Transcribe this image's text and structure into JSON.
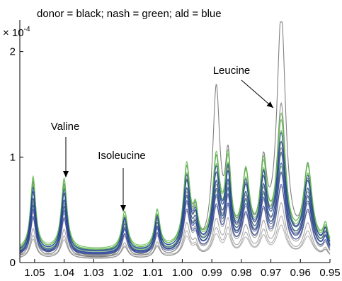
{
  "chart_data": {
    "type": "line",
    "title": "donor = black; nash = green; ald = blue",
    "y_multiplier": "× 10",
    "y_multiplier_exp": "-4",
    "xlabel": "",
    "ylabel": "",
    "xlim": [
      1.055,
      0.95
    ],
    "x_reversed": true,
    "ylim": [
      0,
      2.3
    ],
    "grid": false,
    "x_ticks": [
      "1.05",
      "1.04",
      "1.03",
      "1.02",
      "1.01",
      "1.00",
      "0.99",
      "0.98",
      "0.97",
      "0.96",
      "0.95"
    ],
    "x_tick_values": [
      1.05,
      1.04,
      1.03,
      1.02,
      1.01,
      1.0,
      0.99,
      0.98,
      0.97,
      0.96,
      0.95
    ],
    "y_ticks": [
      "0",
      "1",
      "2"
    ],
    "y_tick_values": [
      0,
      1,
      2
    ],
    "colors": {
      "donor": "#7a7a7a",
      "nash": "#5fb84a",
      "ald": "#2a3fa0"
    },
    "annotations": [
      {
        "text": "Valine",
        "x": 1.04,
        "y": 1.0
      },
      {
        "text": "Isoleucine",
        "x": 1.02,
        "y": 0.55
      },
      {
        "text": "Leucine",
        "x": 0.967,
        "y": 1.85
      }
    ],
    "peaks": [
      {
        "x": 1.0505,
        "w": 0.0011,
        "rel": 0.72
      },
      {
        "x": 1.04,
        "w": 0.0012,
        "rel": 0.7
      },
      {
        "x": 1.0195,
        "w": 0.0012,
        "rel": 0.38
      },
      {
        "x": 1.0085,
        "w": 0.0011,
        "rel": 0.38
      },
      {
        "x": 0.9985,
        "w": 0.0014,
        "rel": 0.8
      },
      {
        "x": 0.9955,
        "w": 0.001,
        "rel": 0.3
      },
      {
        "x": 0.9885,
        "w": 0.0015,
        "rel": 0.85
      },
      {
        "x": 0.9845,
        "w": 0.0012,
        "rel": 0.8
      },
      {
        "x": 0.9785,
        "w": 0.0016,
        "rel": 0.7
      },
      {
        "x": 0.9725,
        "w": 0.0014,
        "rel": 0.75
      },
      {
        "x": 0.9665,
        "w": 0.0018,
        "rel": 1.25
      },
      {
        "x": 0.9575,
        "w": 0.0018,
        "rel": 0.8
      },
      {
        "x": 0.9515,
        "w": 0.001,
        "rel": 0.2
      }
    ],
    "series": [
      {
        "group": "donor",
        "scale": 1.0,
        "baseline": 0.03,
        "tweak": {
          "10": 1.8,
          "6": 1.8,
          "4": 1.0
        }
      },
      {
        "group": "donor",
        "scale": 0.85,
        "baseline": 0.05,
        "tweak": {
          "10": 1.3,
          "6": 1.2
        }
      },
      {
        "group": "donor",
        "scale": 0.7,
        "baseline": 0.06,
        "tweak": {
          "10": 1.1,
          "6": 1.0
        }
      },
      {
        "group": "donor",
        "scale": 0.6,
        "baseline": 0.04,
        "tweak": {
          "10": 1.0
        }
      },
      {
        "group": "donor",
        "scale": 0.5,
        "baseline": 0.05,
        "tweak": {}
      },
      {
        "group": "donor",
        "scale": 0.4,
        "baseline": 0.03,
        "tweak": {}
      },
      {
        "group": "donor",
        "scale": 0.3,
        "baseline": 0.04,
        "tweak": {}
      },
      {
        "group": "donor",
        "scale": 0.22,
        "baseline": 0.06,
        "tweak": {}
      },
      {
        "group": "nash",
        "scale": 0.98,
        "baseline": 0.1,
        "tweak": {}
      },
      {
        "group": "nash",
        "scale": 0.92,
        "baseline": 0.12,
        "tweak": {}
      },
      {
        "group": "nash",
        "scale": 0.85,
        "baseline": 0.11,
        "tweak": {}
      },
      {
        "group": "nash",
        "scale": 0.78,
        "baseline": 0.1,
        "tweak": {}
      },
      {
        "group": "nash",
        "scale": 0.7,
        "baseline": 0.09,
        "tweak": {}
      },
      {
        "group": "nash",
        "scale": 0.62,
        "baseline": 0.08,
        "tweak": {}
      },
      {
        "group": "ald",
        "scale": 0.85,
        "baseline": 0.09,
        "tweak": {}
      },
      {
        "group": "ald",
        "scale": 0.78,
        "baseline": 0.1,
        "tweak": {}
      },
      {
        "group": "ald",
        "scale": 0.72,
        "baseline": 0.08,
        "tweak": {}
      },
      {
        "group": "ald",
        "scale": 0.65,
        "baseline": 0.07,
        "tweak": {}
      },
      {
        "group": "ald",
        "scale": 0.58,
        "baseline": 0.08,
        "tweak": {}
      },
      {
        "group": "ald",
        "scale": 0.5,
        "baseline": 0.07,
        "tweak": {}
      }
    ]
  }
}
